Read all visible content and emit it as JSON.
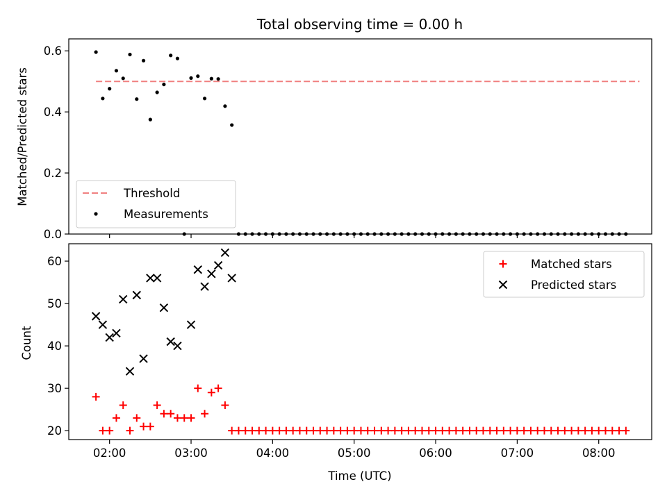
{
  "chart_data": [
    {
      "type": "scatter",
      "panel": "top",
      "title": "Total observing time = 0.00 h",
      "xlabel": "",
      "ylabel": "Matched/Predicted stars",
      "xlim": [
        "01:30",
        "08:39"
      ],
      "ylim": [
        0.0,
        0.6392
      ],
      "yticks": [
        0.0,
        0.2,
        0.4,
        0.6
      ],
      "ytick_labels": [
        "0.0",
        "0.2",
        "0.4",
        "0.6"
      ],
      "xticks": [
        "02:00",
        "03:00",
        "04:00",
        "05:00",
        "06:00",
        "07:00",
        "08:00"
      ],
      "show_xtick_labels": false,
      "grid": false,
      "legend": {
        "placement": "bottom-left",
        "entries": [
          "Threshold",
          "Measurements"
        ]
      },
      "series": [
        {
          "name": "Threshold",
          "kind": "dashed-line",
          "color": "#f08080",
          "x": [
            "01:50",
            "08:30"
          ],
          "y": [
            0.5,
            0.5
          ]
        },
        {
          "name": "Measurements",
          "kind": "points",
          "color": "#000000",
          "x": [
            "01:50",
            "01:55",
            "02:00",
            "02:05",
            "02:10",
            "02:15",
            "02:20",
            "02:25",
            "02:30",
            "02:35",
            "02:40",
            "02:45",
            "02:50",
            "02:55",
            "03:00",
            "03:05",
            "03:10",
            "03:15",
            "03:20",
            "03:25",
            "03:30",
            "03:35",
            "03:40",
            "03:45",
            "03:50",
            "03:55",
            "04:00",
            "04:05",
            "04:10",
            "04:15",
            "04:20",
            "04:25",
            "04:30",
            "04:35",
            "04:40",
            "04:45",
            "04:50",
            "04:55",
            "05:00",
            "05:05",
            "05:10",
            "05:15",
            "05:20",
            "05:25",
            "05:30",
            "05:35",
            "05:40",
            "05:45",
            "05:50",
            "05:55",
            "06:00",
            "06:05",
            "06:10",
            "06:15",
            "06:20",
            "06:25",
            "06:30",
            "06:35",
            "06:40",
            "06:45",
            "06:50",
            "06:55",
            "07:00",
            "07:05",
            "07:10",
            "07:15",
            "07:20",
            "07:25",
            "07:30",
            "07:35",
            "07:40",
            "07:45",
            "07:50",
            "07:55",
            "08:00",
            "08:05",
            "08:10",
            "08:15",
            "08:20"
          ],
          "y": [
            0.596,
            0.444,
            0.476,
            0.535,
            0.51,
            0.588,
            0.442,
            0.568,
            0.375,
            0.464,
            0.49,
            0.585,
            0.575,
            0.0,
            0.511,
            0.517,
            0.444,
            0.509,
            0.508,
            0.419,
            0.357,
            0.0,
            0.0,
            0.0,
            0.0,
            0.0,
            0.0,
            0.0,
            0.0,
            0.0,
            0.0,
            0.0,
            0.0,
            0.0,
            0.0,
            0.0,
            0.0,
            0.0,
            0.0,
            0.0,
            0.0,
            0.0,
            0.0,
            0.0,
            0.0,
            0.0,
            0.0,
            0.0,
            0.0,
            0.0,
            0.0,
            0.0,
            0.0,
            0.0,
            0.0,
            0.0,
            0.0,
            0.0,
            0.0,
            0.0,
            0.0,
            0.0,
            0.0,
            0.0,
            0.0,
            0.0,
            0.0,
            0.0,
            0.0,
            0.0,
            0.0,
            0.0,
            0.0,
            0.0,
            0.0,
            0.0,
            0.0,
            0.0,
            0.0
          ]
        }
      ]
    },
    {
      "type": "scatter",
      "panel": "bottom",
      "title": "",
      "xlabel": "Time (UTC)",
      "ylabel": "Count",
      "xlim": [
        "01:30",
        "08:39"
      ],
      "ylim": [
        17.9,
        64.1
      ],
      "yticks": [
        20,
        30,
        40,
        50,
        60
      ],
      "ytick_labels": [
        "20",
        "30",
        "40",
        "50",
        "60"
      ],
      "xticks": [
        "02:00",
        "03:00",
        "04:00",
        "05:00",
        "06:00",
        "07:00",
        "08:00"
      ],
      "xtick_labels": [
        "02:00",
        "03:00",
        "04:00",
        "05:00",
        "06:00",
        "07:00",
        "08:00"
      ],
      "grid": false,
      "legend": {
        "placement": "top-right",
        "entries": [
          "Matched stars",
          "Predicted stars"
        ]
      },
      "series": [
        {
          "name": "Matched stars",
          "marker": "plus",
          "color": "#ff0000",
          "x": [
            "01:50",
            "01:55",
            "02:00",
            "02:05",
            "02:10",
            "02:15",
            "02:20",
            "02:25",
            "02:30",
            "02:35",
            "02:40",
            "02:45",
            "02:50",
            "02:55",
            "03:00",
            "03:05",
            "03:10",
            "03:15",
            "03:20",
            "03:25",
            "03:30",
            "03:35",
            "03:40",
            "03:45",
            "03:50",
            "03:55",
            "04:00",
            "04:05",
            "04:10",
            "04:15",
            "04:20",
            "04:25",
            "04:30",
            "04:35",
            "04:40",
            "04:45",
            "04:50",
            "04:55",
            "05:00",
            "05:05",
            "05:10",
            "05:15",
            "05:20",
            "05:25",
            "05:30",
            "05:35",
            "05:40",
            "05:45",
            "05:50",
            "05:55",
            "06:00",
            "06:05",
            "06:10",
            "06:15",
            "06:20",
            "06:25",
            "06:30",
            "06:35",
            "06:40",
            "06:45",
            "06:50",
            "06:55",
            "07:00",
            "07:05",
            "07:10",
            "07:15",
            "07:20",
            "07:25",
            "07:30",
            "07:35",
            "07:40",
            "07:45",
            "07:50",
            "07:55",
            "08:00",
            "08:05",
            "08:10",
            "08:15",
            "08:20"
          ],
          "y": [
            28,
            20,
            20,
            23,
            26,
            20,
            23,
            21,
            21,
            26,
            24,
            24,
            23,
            23,
            23,
            30,
            24,
            29,
            30,
            26,
            20,
            20,
            20,
            20,
            20,
            20,
            20,
            20,
            20,
            20,
            20,
            20,
            20,
            20,
            20,
            20,
            20,
            20,
            20,
            20,
            20,
            20,
            20,
            20,
            20,
            20,
            20,
            20,
            20,
            20,
            20,
            20,
            20,
            20,
            20,
            20,
            20,
            20,
            20,
            20,
            20,
            20,
            20,
            20,
            20,
            20,
            20,
            20,
            20,
            20,
            20,
            20,
            20,
            20,
            20,
            20,
            20,
            20,
            20
          ]
        },
        {
          "name": "Predicted stars",
          "marker": "x",
          "color": "#000000",
          "x": [
            "01:50",
            "01:55",
            "02:00",
            "02:05",
            "02:10",
            "02:15",
            "02:20",
            "02:25",
            "02:30",
            "02:35",
            "02:40",
            "02:45",
            "02:50",
            "03:00",
            "03:05",
            "03:10",
            "03:15",
            "03:20",
            "03:25",
            "03:30"
          ],
          "y": [
            47,
            45,
            42,
            43,
            51,
            34,
            52,
            37,
            56,
            56,
            49,
            41,
            40,
            45,
            58,
            54,
            57,
            59,
            62,
            56
          ]
        }
      ]
    }
  ]
}
